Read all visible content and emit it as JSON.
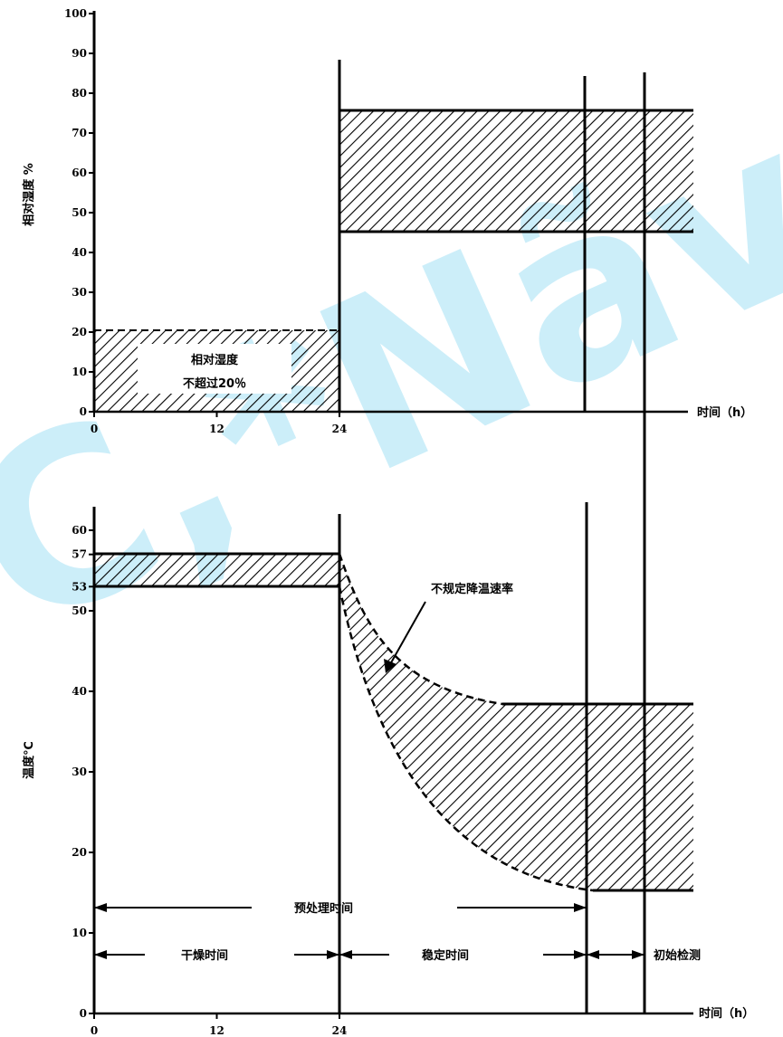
{
  "chart_data": [
    {
      "type": "area",
      "ylabel": "相对湿度 %",
      "xlabel": "时间（h）",
      "yticks": [
        0,
        10,
        20,
        30,
        40,
        50,
        60,
        70,
        80,
        90,
        100
      ],
      "xticks": [
        0,
        12,
        24
      ],
      "ylim": [
        0,
        100
      ],
      "bands": [
        {
          "x": [
            0,
            24
          ],
          "y_low": 0,
          "y_high": 20,
          "hatched": true
        },
        {
          "x": [
            24,
            60
          ],
          "y_low": 45,
          "y_high": 75,
          "hatched": true
        }
      ],
      "annotations": [
        "相对湿度",
        "不超过20％"
      ]
    },
    {
      "type": "area",
      "ylabel": "温度℃",
      "xlabel": "时间（h）",
      "yticks": [
        0,
        10,
        20,
        30,
        40,
        50,
        53,
        57,
        60
      ],
      "xticks": [
        0,
        12,
        24
      ],
      "ylim": [
        0,
        60
      ],
      "bands": [
        {
          "x": [
            0,
            24
          ],
          "y_low": 53,
          "y_high": 57,
          "hatched": true
        },
        {
          "x": [
            48,
            60
          ],
          "y_low": 15,
          "y_high": 35,
          "hatched": true
        }
      ],
      "annotations": [
        "不规定降温速率",
        "预处理时间",
        "干燥时间",
        "稳定时间",
        "初始检测"
      ]
    }
  ],
  "watermark": "C,*Nãv",
  "colors": {
    "ink": "#000000",
    "watermark": "#8fdaf2"
  }
}
